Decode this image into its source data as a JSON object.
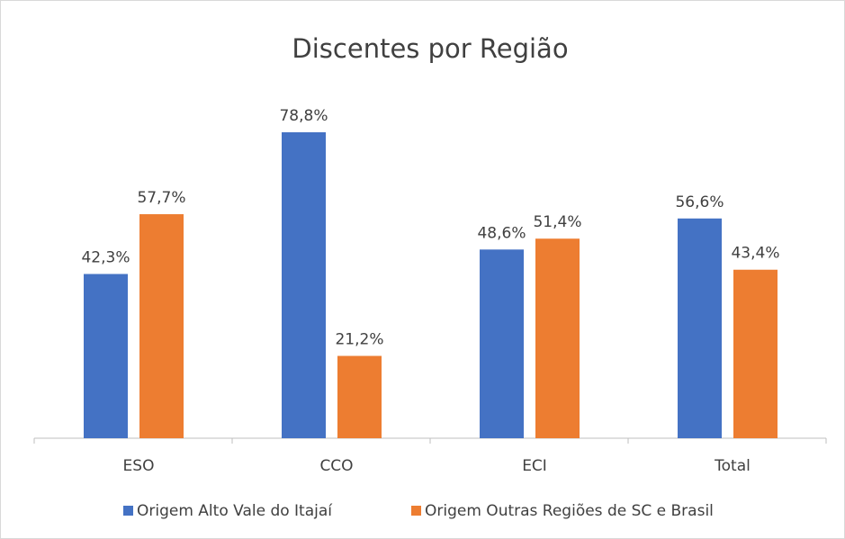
{
  "chart_data": {
    "type": "bar",
    "title": "Discentes por Região",
    "categories": [
      "ESO",
      "CCO",
      "ECI",
      "Total"
    ],
    "series": [
      {
        "name": "Origem Alto Vale do Itajaí",
        "color": "#4472c4",
        "values": [
          42.3,
          78.8,
          48.6,
          56.6
        ],
        "value_labels": [
          "42,3%",
          "78,8%",
          "48,6%",
          "56,6%"
        ]
      },
      {
        "name": "Origem Outras Regiões de SC e Brasil",
        "color": "#ed7d31",
        "values": [
          57.7,
          21.2,
          51.4,
          43.4
        ],
        "value_labels": [
          "57,7%",
          "21,2%",
          "51,4%",
          "43,4%"
        ]
      }
    ],
    "legend": "bottom"
  }
}
